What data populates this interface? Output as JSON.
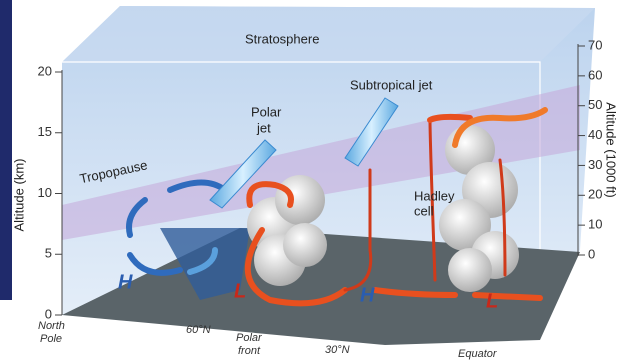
{
  "labels": {
    "stratosphere": "Stratosphere",
    "tropopause": "Tropopause",
    "polar_jet": [
      "Polar",
      "jet"
    ],
    "subtropical_jet": "Subtropical jet",
    "hadley_cell": [
      "Hadley",
      "cell"
    ]
  },
  "left_axis": {
    "title": "Altitude (km)",
    "ticks": [
      0,
      5,
      10,
      15,
      20
    ]
  },
  "right_axis": {
    "title": "Altitude (1000 ft)",
    "ticks": [
      0,
      10,
      20,
      30,
      40,
      50,
      60,
      70
    ]
  },
  "bottom_labels": {
    "north_pole": [
      "North",
      "Pole"
    ],
    "lat60": "60°N",
    "polar_front": [
      "Polar",
      "front"
    ],
    "lat30": "30°N",
    "equator": "Equator"
  },
  "pressure": {
    "h1": "H",
    "l1": "L",
    "h2": "H",
    "l2": "L"
  }
}
